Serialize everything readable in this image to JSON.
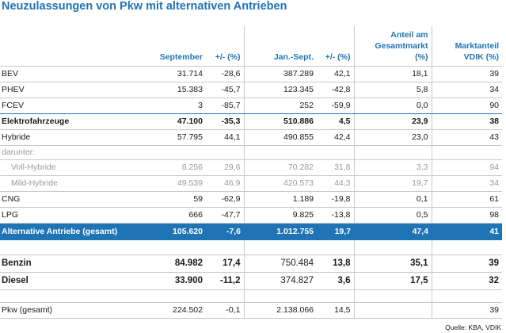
{
  "title": "Neuzulassungen von Pkw mit alternativen Antrieben",
  "columns": [
    "",
    "September",
    "+/- (%)",
    "Jan.-Sept.",
    "+/- (%)",
    "Anteil am Gesamtmarkt (%)",
    "Marktanteil VDIK (%)"
  ],
  "rows": [
    {
      "label": "BEV",
      "v": [
        "31.714",
        "-28,6",
        "387.289",
        "42,1",
        "18,1",
        "39"
      ]
    },
    {
      "label": "PHEV",
      "v": [
        "15.383",
        "-45,7",
        "123.345",
        "-42,8",
        "5,8",
        "34"
      ]
    },
    {
      "label": "FCEV",
      "v": [
        "3",
        "-85,7",
        "252",
        "-59,9",
        "0,0",
        "90"
      ]
    },
    {
      "label": "Elektrofahrzeuge",
      "v": [
        "47.100",
        "-35,3",
        "510.886",
        "4,5",
        "23,9",
        "38"
      ]
    },
    {
      "label": "Hybride",
      "v": [
        "57.795",
        "44,1",
        "490.855",
        "42,4",
        "23,0",
        "43"
      ]
    },
    {
      "label": "darunter:"
    },
    {
      "label": "Voll-Hybride",
      "v": [
        "8.256",
        "29,6",
        "70.282",
        "31,8",
        "3,3",
        "94"
      ]
    },
    {
      "label": "Mild-Hybride",
      "v": [
        "49.539",
        "46,9",
        "420.573",
        "44,3",
        "19,7",
        "34"
      ]
    },
    {
      "label": "CNG",
      "v": [
        "59",
        "-62,9",
        "1.189",
        "-19,8",
        "0,1",
        "61"
      ]
    },
    {
      "label": "LPG",
      "v": [
        "666",
        "-47,7",
        "9.825",
        "-13,8",
        "0,5",
        "98"
      ]
    },
    {
      "label": "Alternative Antriebe (gesamt)",
      "v": [
        "105.620",
        "-7,6",
        "1.012.755",
        "19,7",
        "47,4",
        "41"
      ]
    },
    {
      "label": "Benzin",
      "v": [
        "84.982",
        "17,4",
        "750.484",
        "13,8",
        "35,1",
        "39"
      ]
    },
    {
      "label": "Diesel",
      "v": [
        "33.900",
        "-11,2",
        "374.827",
        "3,6",
        "17,5",
        "32"
      ]
    },
    {
      "label": "Pkw (gesamt)",
      "v": [
        "224.502",
        "-0,1",
        "2.138.066",
        "14,5",
        "",
        "39"
      ]
    }
  ],
  "source": "Quelle: KBA, VDIK",
  "colors": {
    "accent": "#1f74b5",
    "muted": "#9a9a9a",
    "rule": "#c9c9c9"
  }
}
